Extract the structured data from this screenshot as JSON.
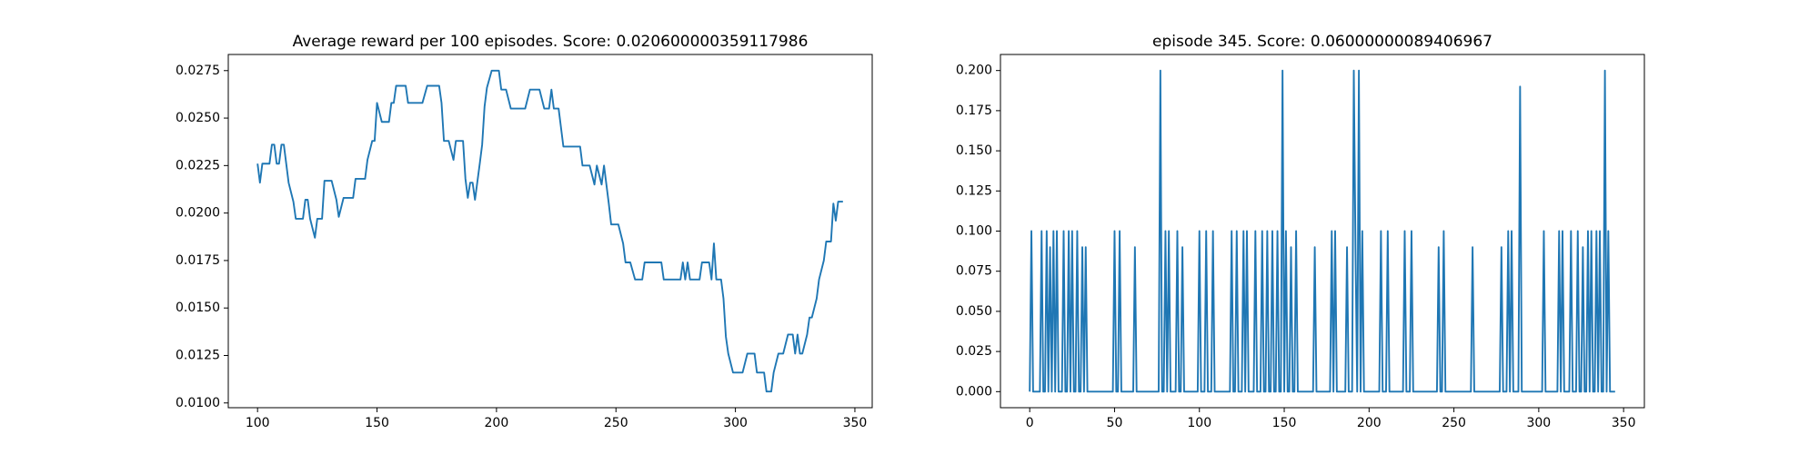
{
  "chart_data": [
    {
      "type": "line",
      "title": "Average reward per 100 episodes. Score: 0.020600000359117986",
      "color": "#1f77b4",
      "x": [
        100,
        101,
        102,
        105,
        106,
        107,
        108,
        109,
        110,
        111,
        112,
        113,
        115,
        116,
        119,
        120,
        121,
        122,
        124,
        125,
        127,
        128,
        131,
        133,
        134,
        136,
        140,
        141,
        145,
        146,
        148,
        149,
        150,
        152,
        155,
        156,
        157,
        158,
        162,
        163,
        169,
        171,
        176,
        177,
        178,
        180,
        182,
        183,
        186,
        187,
        188,
        189,
        190,
        191,
        193,
        194,
        195,
        196,
        198,
        201,
        202,
        204,
        206,
        212,
        214,
        218,
        220,
        222,
        223,
        224,
        226,
        228,
        235,
        236,
        239,
        241,
        242,
        244,
        245,
        247,
        248,
        251,
        253,
        254,
        256,
        258,
        261,
        262,
        269,
        270,
        277,
        278,
        279,
        280,
        281,
        285,
        286,
        289,
        290,
        291,
        292,
        294,
        295,
        296,
        297,
        299,
        303,
        305,
        308,
        309,
        312,
        313,
        315,
        316,
        318,
        320,
        322,
        324,
        325,
        326,
        327,
        328,
        330,
        331,
        332,
        334,
        335,
        337,
        338,
        340,
        341,
        342,
        343,
        345
      ],
      "values": [
        0.0226,
        0.0216,
        0.0226,
        0.0226,
        0.0236,
        0.0236,
        0.0226,
        0.0226,
        0.0236,
        0.0236,
        0.0226,
        0.0216,
        0.0206,
        0.0197,
        0.0197,
        0.0207,
        0.0207,
        0.0197,
        0.0187,
        0.0197,
        0.0197,
        0.0217,
        0.0217,
        0.0207,
        0.0198,
        0.0208,
        0.0208,
        0.0218,
        0.0218,
        0.0228,
        0.0238,
        0.0238,
        0.0258,
        0.0248,
        0.0248,
        0.0258,
        0.0258,
        0.0267,
        0.0267,
        0.0258,
        0.0258,
        0.0267,
        0.0267,
        0.0258,
        0.0238,
        0.0238,
        0.0228,
        0.0238,
        0.0238,
        0.0218,
        0.0208,
        0.0216,
        0.0216,
        0.0207,
        0.0226,
        0.0236,
        0.0256,
        0.0266,
        0.0275,
        0.0275,
        0.0265,
        0.0265,
        0.0255,
        0.0255,
        0.0265,
        0.0265,
        0.0255,
        0.0255,
        0.0265,
        0.0255,
        0.0255,
        0.0235,
        0.0235,
        0.0225,
        0.0225,
        0.0215,
        0.0225,
        0.0215,
        0.0225,
        0.0205,
        0.0194,
        0.0194,
        0.0184,
        0.0174,
        0.0174,
        0.0165,
        0.0165,
        0.0174,
        0.0174,
        0.0165,
        0.0165,
        0.0174,
        0.0165,
        0.0174,
        0.0165,
        0.0165,
        0.0174,
        0.0174,
        0.0165,
        0.0184,
        0.0165,
        0.0165,
        0.0155,
        0.0135,
        0.0126,
        0.0116,
        0.0116,
        0.0126,
        0.0126,
        0.0116,
        0.0116,
        0.0106,
        0.0106,
        0.0116,
        0.0126,
        0.0126,
        0.0136,
        0.0136,
        0.0126,
        0.0136,
        0.0126,
        0.0126,
        0.0136,
        0.0145,
        0.0145,
        0.0155,
        0.0165,
        0.0175,
        0.0185,
        0.0185,
        0.0205,
        0.0196,
        0.0206,
        0.0206
      ],
      "xlim": [
        87.75,
        357.25
      ],
      "xticks": [
        100,
        150,
        200,
        250,
        300,
        350
      ],
      "ylim": [
        0.00975,
        0.02835
      ],
      "yticks": [
        {
          "value": 0.01,
          "label": "0.0100"
        },
        {
          "value": 0.0125,
          "label": "0.0125"
        },
        {
          "value": 0.015,
          "label": "0.0150"
        },
        {
          "value": 0.0175,
          "label": "0.0175"
        },
        {
          "value": 0.02,
          "label": "0.0200"
        },
        {
          "value": 0.0225,
          "label": "0.0225"
        },
        {
          "value": 0.025,
          "label": "0.0250"
        },
        {
          "value": 0.0275,
          "label": "0.0275"
        }
      ]
    },
    {
      "type": "line",
      "title": "episode 345. Score: 0.06000000089406967",
      "color": "#1f77b4",
      "x": [
        0,
        1,
        2,
        6,
        7,
        8,
        9,
        10,
        11,
        12,
        13,
        14,
        15,
        16,
        17,
        19,
        20,
        21,
        22,
        23,
        24,
        25,
        26,
        27,
        28,
        29,
        30,
        31,
        32,
        33,
        34,
        49,
        50,
        51,
        52,
        53,
        54,
        61,
        62,
        63,
        76,
        77,
        78,
        79,
        80,
        81,
        82,
        83,
        86,
        87,
        88,
        89,
        90,
        91,
        99,
        100,
        101,
        103,
        104,
        105,
        107,
        108,
        109,
        118,
        119,
        120,
        121,
        122,
        123,
        125,
        126,
        127,
        128,
        129,
        132,
        133,
        134,
        136,
        137,
        138,
        139,
        140,
        141,
        142,
        143,
        144,
        145,
        146,
        147,
        148,
        149,
        150,
        151,
        152,
        153,
        154,
        155,
        156,
        157,
        158,
        167,
        168,
        169,
        177,
        178,
        179,
        180,
        181,
        186,
        187,
        188,
        190,
        191,
        192,
        193,
        194,
        195,
        196,
        197,
        206,
        207,
        208,
        210,
        211,
        212,
        220,
        221,
        222,
        224,
        225,
        226,
        240,
        241,
        242,
        243,
        244,
        245,
        260,
        261,
        262,
        277,
        278,
        279,
        281,
        282,
        283,
        284,
        285,
        288,
        289,
        290,
        302,
        303,
        304,
        311,
        312,
        313,
        314,
        315,
        318,
        319,
        320,
        322,
        323,
        324,
        325,
        326,
        327,
        328,
        329,
        330,
        331,
        332,
        333,
        334,
        335,
        336,
        337,
        338,
        339,
        340,
        341,
        342,
        345
      ],
      "values": [
        0,
        0.1,
        0,
        0,
        0.1,
        0,
        0,
        0.1,
        0,
        0.09,
        0,
        0.1,
        0,
        0.1,
        0,
        0,
        0.1,
        0,
        0,
        0.1,
        0,
        0.1,
        0,
        0,
        0.1,
        0,
        0,
        0.09,
        0,
        0.09,
        0,
        0,
        0.1,
        0,
        0,
        0.1,
        0,
        0,
        0.09,
        0,
        0,
        0.2,
        0,
        0,
        0.1,
        0,
        0.1,
        0,
        0,
        0.1,
        0,
        0,
        0.09,
        0,
        0,
        0.1,
        0,
        0,
        0.1,
        0,
        0,
        0.1,
        0,
        0,
        0.1,
        0,
        0,
        0.1,
        0,
        0,
        0.1,
        0,
        0.1,
        0,
        0,
        0.1,
        0,
        0,
        0.1,
        0,
        0,
        0.1,
        0,
        0,
        0.1,
        0,
        0,
        0.1,
        0,
        0,
        0.2,
        0,
        0.1,
        0,
        0,
        0.09,
        0,
        0,
        0.1,
        0,
        0,
        0.09,
        0,
        0,
        0.1,
        0,
        0.1,
        0,
        0,
        0.09,
        0,
        0,
        0.2,
        0.09,
        0,
        0.2,
        0,
        0.1,
        0,
        0,
        0.1,
        0,
        0,
        0.1,
        0,
        0,
        0.1,
        0,
        0,
        0.1,
        0,
        0,
        0.09,
        0,
        0,
        0.1,
        0,
        0,
        0.09,
        0,
        0,
        0.09,
        0,
        0,
        0.1,
        0,
        0.1,
        0,
        0,
        0.19,
        0,
        0,
        0.1,
        0,
        0,
        0.1,
        0,
        0.1,
        0,
        0,
        0.1,
        0,
        0,
        0.1,
        0,
        0,
        0.09,
        0,
        0,
        0.1,
        0,
        0.1,
        0,
        0,
        0.1,
        0,
        0.1,
        0,
        0,
        0.2,
        0,
        0.1,
        0,
        0
      ],
      "xlim": [
        -17.25,
        362.25
      ],
      "xticks": [
        0,
        50,
        100,
        150,
        200,
        250,
        300,
        350
      ],
      "ylim": [
        -0.01,
        0.21
      ],
      "yticks": [
        {
          "value": 0,
          "label": "0.000"
        },
        {
          "value": 0.025,
          "label": "0.025"
        },
        {
          "value": 0.05,
          "label": "0.050"
        },
        {
          "value": 0.075,
          "label": "0.075"
        },
        {
          "value": 0.1,
          "label": "0.100"
        },
        {
          "value": 0.125,
          "label": "0.125"
        },
        {
          "value": 0.15,
          "label": "0.150"
        },
        {
          "value": 0.175,
          "label": "0.175"
        },
        {
          "value": 0.2,
          "label": "0.200"
        }
      ]
    }
  ]
}
